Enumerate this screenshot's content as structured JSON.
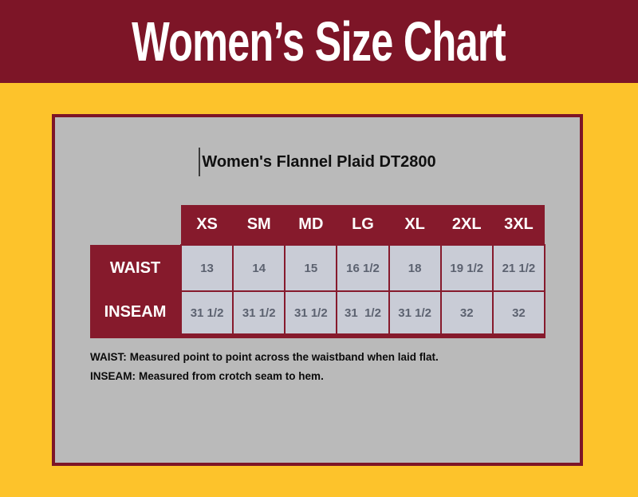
{
  "banner": {
    "title": "Women’s Size Chart"
  },
  "panel": {
    "product_title": "Women's Flannel Plaid DT2800"
  },
  "chart_data": {
    "type": "table",
    "title": "Women's Flannel Plaid DT2800",
    "banner_title": "Women’s Size Chart",
    "columns": [
      "XS",
      "SM",
      "MD",
      "LG",
      "XL",
      "2XL",
      "3XL"
    ],
    "rows": [
      {
        "label": "WAIST",
        "values": [
          "13",
          "14",
          "15",
          "16 1/2",
          "18",
          "19 1/2",
          "21 1/2"
        ]
      },
      {
        "label": "INSEAM",
        "values": [
          "31 1/2",
          "31 1/2",
          "31 1/2",
          "31  1/2",
          "31 1/2",
          "32",
          "32"
        ]
      }
    ],
    "notes": [
      {
        "term": "WAIST:",
        "text": "Measured point to point across the waistband when laid flat."
      },
      {
        "term": "INSEAM:",
        "text": "Measured from crotch seam to hem."
      }
    ],
    "layout": {
      "legend_position": "none",
      "grid": "maroon cell borders on light gray cells"
    }
  },
  "colors": {
    "banner_maroon": "#7D1527",
    "table_maroon": "#861A2C",
    "background_yellow": "#FDC32B",
    "panel_gray": "#BABABA",
    "cell_background": "#C9CCD6",
    "cell_text": "#5C6270"
  }
}
